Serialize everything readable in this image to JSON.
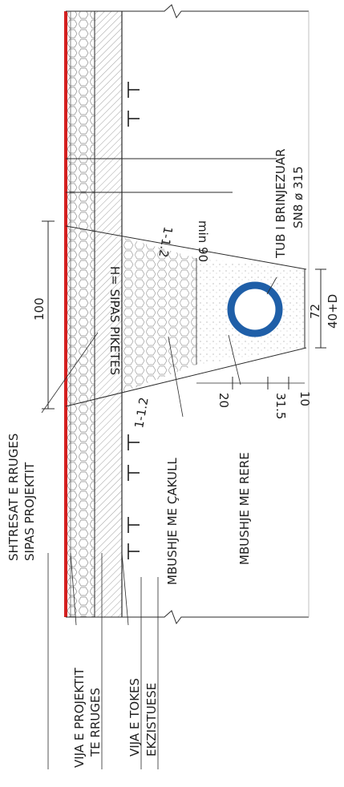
{
  "labels": {
    "road_layers": "SHTRESAT E RRUGES",
    "road_layers_2": "SIPAS PROJEKTIT",
    "gravel_fill": "MBUSHJE ME ÇAKULL",
    "sand_fill": "MBUSHJE ME RERE",
    "pipe_type": "TUB I BRINJEZUAR",
    "pipe_spec": "SN8 ø 315",
    "depth": "H= SIPAS PIKETES",
    "min_cover": "min 90",
    "slope_top": "1-1.2",
    "slope_bottom": "1-1.2",
    "project_line": "VIJA E PROJEKTIT",
    "project_line_2": "TE RRUGES",
    "ground_line": "VIJA E TOKES",
    "ground_line_2": "EKZISTUESE"
  },
  "dimensions": {
    "trench_width": "100",
    "bedding_width": "72",
    "bedding_formula": "40+D",
    "layer_10": "10",
    "layer_31_5": "31.5",
    "layer_20": "20"
  },
  "colors": {
    "road_line": "#d42020",
    "pipe": "#1f5fa8",
    "ink": "#2a2a2a"
  }
}
